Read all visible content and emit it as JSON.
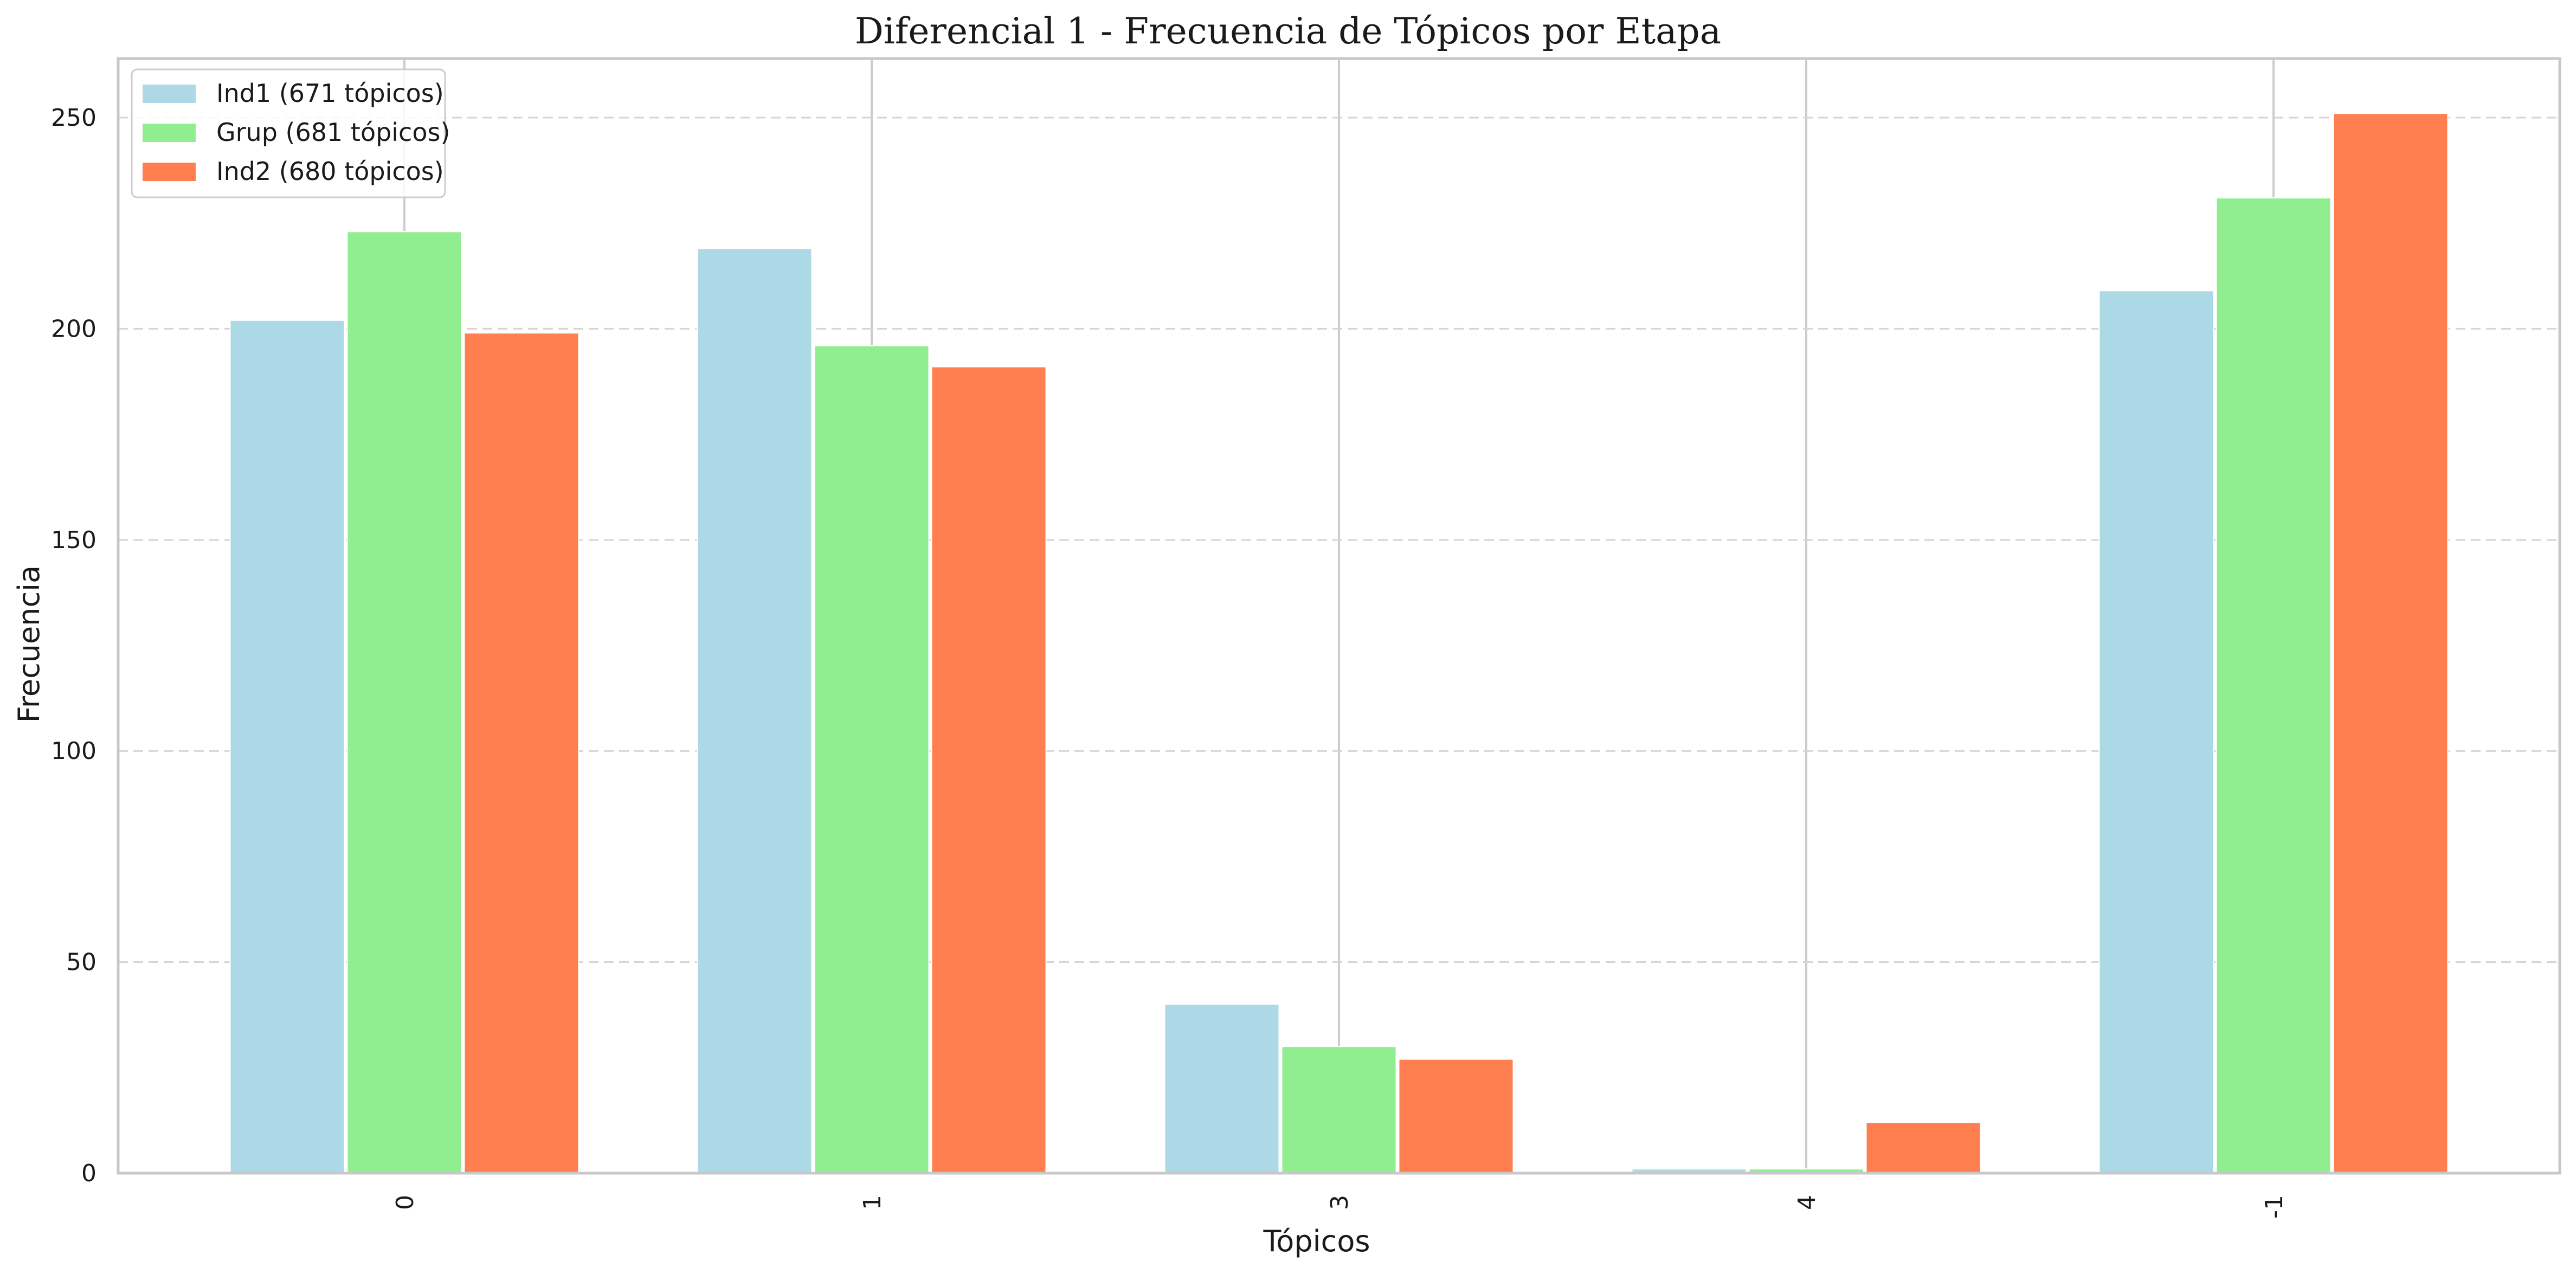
{
  "chart_data": {
    "type": "bar",
    "title": "Diferencial 1 - Frecuencia de Tópicos por Etapa",
    "xlabel": "Tópicos",
    "ylabel": "Frecuencia",
    "categories": [
      "0",
      "1",
      "3",
      "4",
      "-1"
    ],
    "ylim": [
      0,
      264
    ],
    "yticks": [
      0,
      50,
      100,
      150,
      200,
      250
    ],
    "grid": "y-dashed",
    "legend_position": "top-left",
    "series": [
      {
        "name": "Ind1 (671 tópicos)",
        "color": "#add8e6",
        "values": [
          202,
          219,
          40,
          1,
          209
        ]
      },
      {
        "name": "Grup (681 tópicos)",
        "color": "#90ee90",
        "values": [
          223,
          196,
          30,
          1,
          231
        ]
      },
      {
        "name": "Ind2 (680 tópicos)",
        "color": "#ff7f50",
        "values": [
          199,
          191,
          27,
          12,
          251
        ]
      }
    ]
  }
}
